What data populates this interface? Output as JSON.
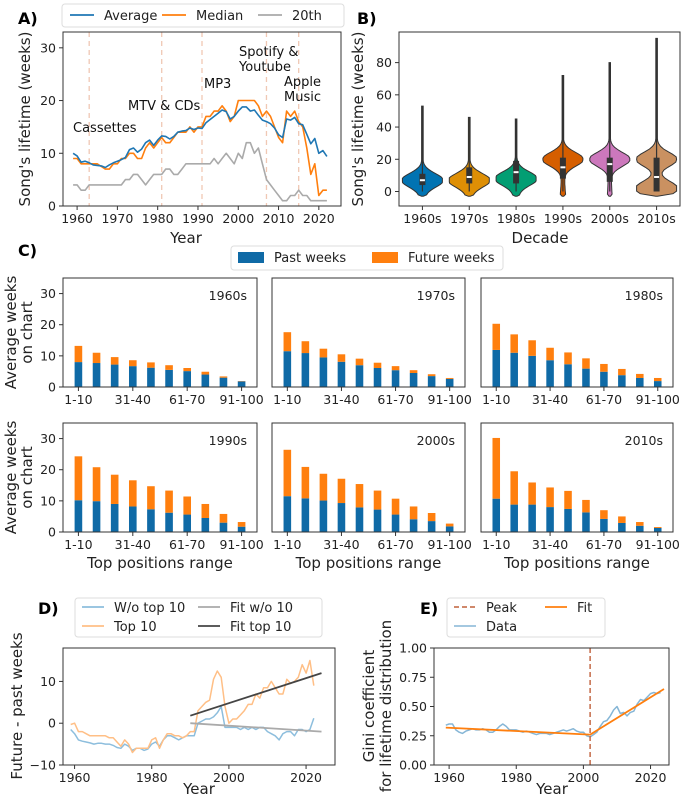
{
  "figure": {
    "panel_labels": {
      "a": "A)",
      "b": "B)",
      "c": "C)",
      "d": "D)",
      "e": "E)"
    }
  },
  "chart_data": [
    {
      "id": "A",
      "type": "line",
      "xlabel": "Year",
      "ylabel": "Song's lifetime (weeks)",
      "xlim": [
        1956.5,
        2025.5
      ],
      "ylim": [
        0,
        33
      ],
      "xticks": [
        1960,
        1970,
        1980,
        1990,
        2000,
        2010,
        2020
      ],
      "xticklabels": [
        "1960",
        "1970",
        "1980",
        "1990",
        "2000",
        "2010",
        "2020"
      ],
      "yticks": [
        0,
        10,
        20,
        30
      ],
      "yticklabels": [
        "0",
        "10",
        "20",
        "30"
      ],
      "x": {
        "start": 1959,
        "end": 2022,
        "step": 1
      },
      "legend_placement": "top",
      "series": [
        {
          "name": "Average",
          "color": "#1f77b4",
          "values": [
            10,
            9.5,
            8.3,
            8.5,
            8.2,
            7.8,
            7.7,
            7.6,
            7.3,
            7.8,
            8.2,
            8.5,
            8.8,
            9.2,
            10.7,
            11,
            10.2,
            10.8,
            12,
            12.5,
            11.5,
            12.5,
            13.3,
            13.2,
            12.7,
            13.2,
            14,
            14.2,
            14.3,
            14.8,
            14.5,
            14.8,
            14.7,
            15.8,
            16.4,
            17,
            17.6,
            18.2,
            17.9,
            16.5,
            17,
            18,
            18.8,
            18.8,
            18,
            18.2,
            17.2,
            16.3,
            16,
            15.6,
            14.8,
            13.5,
            13,
            16.5,
            16.3,
            16.8,
            15.6,
            15.4,
            13.6,
            11.8,
            12.8,
            10,
            10.5,
            9.4
          ]
        },
        {
          "name": "Median",
          "color": "#ff7f0e",
          "values": [
            9,
            9,
            8,
            8,
            8,
            8,
            8,
            7.5,
            7,
            7,
            8,
            8,
            9,
            9,
            10,
            10,
            9,
            9,
            11,
            12,
            11,
            12,
            13,
            12,
            12,
            13,
            14,
            14,
            14,
            15,
            14,
            15,
            15,
            17,
            17,
            18,
            18,
            19,
            18,
            16,
            17,
            20,
            20,
            20,
            20,
            20,
            19,
            17,
            18,
            17,
            15,
            13,
            12,
            18,
            17,
            18,
            16,
            15,
            11,
            6,
            8,
            2,
            3,
            3
          ]
        },
        {
          "name": "20th",
          "color": "#aaaaaa",
          "values": [
            4,
            4,
            3,
            3,
            4,
            4,
            4,
            4,
            4,
            4,
            4,
            4,
            4,
            5,
            5,
            6,
            6,
            5,
            4,
            5,
            6,
            6,
            6,
            7,
            7,
            6,
            6,
            7,
            8,
            8,
            8,
            8,
            8,
            8,
            8,
            9,
            8,
            9,
            10,
            9,
            8,
            10,
            9,
            12,
            12,
            10,
            11,
            8,
            5,
            4,
            3,
            2,
            1,
            1,
            2,
            2,
            3,
            2,
            2,
            1,
            1,
            1,
            1,
            1
          ]
        }
      ],
      "vlines_color": "#f0c8b4",
      "annotations": [
        {
          "year": 1963,
          "lines": [
            "Cassettes"
          ]
        },
        {
          "year": 1981,
          "lines": [
            "MTV & CDs"
          ]
        },
        {
          "year": 1991,
          "lines": [
            "MP3"
          ]
        },
        {
          "year": 2007,
          "lines": [
            "Spotify &",
            "Youtube"
          ]
        },
        {
          "year": 2015,
          "lines": [
            "Apple",
            "Music"
          ]
        }
      ]
    },
    {
      "id": "B",
      "type": "violin",
      "xlabel": "Decade",
      "ylabel": "Song's lifetime (weeks)",
      "ylim": [
        -9,
        99
      ],
      "yticks": [
        0,
        20,
        40,
        60,
        80
      ],
      "yticklabels": [
        "0",
        "20",
        "40",
        "60",
        "80"
      ],
      "categories": [
        "1960s",
        "1970s",
        "1980s",
        "1990s",
        "2000s",
        "2010s"
      ],
      "colors": [
        "#0173b2",
        "#de8f05",
        "#029e73",
        "#d55e00",
        "#cc78bc",
        "#ca9161"
      ],
      "median": [
        7,
        9,
        12,
        15,
        17,
        9
      ],
      "q1": [
        4,
        5,
        5,
        8,
        6,
        0
      ],
      "q3": [
        11,
        15,
        19,
        21,
        21,
        21
      ],
      "min": [
        0,
        0,
        0,
        0,
        0,
        0
      ],
      "max": [
        53,
        46,
        45,
        72,
        80,
        95
      ],
      "modes": [
        [
          7
        ],
        [
          7
        ],
        [
          8
        ],
        [
          20
        ],
        [
          20
        ],
        [
          2,
          20
        ]
      ]
    },
    {
      "id": "C",
      "type": "bar",
      "stacked": true,
      "xlabel": "Top positions range",
      "ylabel": [
        "Average weeks",
        "on chart"
      ],
      "ylim": [
        0,
        35
      ],
      "yticks": [
        0,
        10,
        20,
        30
      ],
      "yticklabels": [
        "0",
        "10",
        "20",
        "30"
      ],
      "categories": [
        "1-10",
        "11-20",
        "21-30",
        "31-40",
        "41-50",
        "51-60",
        "61-70",
        "71-80",
        "81-90",
        "91-100"
      ],
      "xticklabels_shown": [
        "1-10",
        "31-40",
        "61-70",
        "91-100"
      ],
      "legend_placement": "top-center",
      "series_names": {
        "past": "Past weeks",
        "future": "Future weeks"
      },
      "series_colors": {
        "past": "#0f6aa6",
        "future": "#ff7f0e"
      },
      "subplots": [
        {
          "decade": "1960s",
          "past": [
            8,
            7.7,
            7.2,
            6.7,
            6.2,
            5.5,
            5.1,
            4,
            3,
            1.8
          ],
          "future": [
            5.2,
            3.3,
            2.4,
            1.9,
            1.7,
            1.5,
            1.0,
            0.9,
            0.4,
            0.1
          ]
        },
        {
          "decade": "1970s",
          "past": [
            11.5,
            10.9,
            9.5,
            8.1,
            7.0,
            6.1,
            5.4,
            4.5,
            3.5,
            2.6
          ],
          "future": [
            6.1,
            3.8,
            2.8,
            2.4,
            2.1,
            1.7,
            1.3,
            0.9,
            0.6,
            0.3
          ]
        },
        {
          "decade": "1980s",
          "past": [
            11.9,
            11.0,
            10.0,
            8.6,
            7.3,
            5.9,
            4.9,
            3.8,
            2.9,
            1.9
          ],
          "future": [
            8.4,
            5.9,
            5.0,
            4.0,
            3.8,
            3.3,
            2.5,
            2.0,
            1.3,
            1.0
          ]
        },
        {
          "decade": "1990s",
          "past": [
            10.2,
            9.9,
            9,
            8.2,
            7.3,
            6.2,
            5.6,
            4.5,
            3,
            1.7
          ],
          "future": [
            14.1,
            10.9,
            9.4,
            8.4,
            7.4,
            7.1,
            5.8,
            4.5,
            2.8,
            1.5
          ]
        },
        {
          "decade": "2000s",
          "past": [
            11.5,
            10.8,
            10.1,
            9.3,
            7.9,
            7.2,
            5.6,
            4.1,
            3.5,
            1.8
          ],
          "future": [
            14.9,
            10.1,
            8.6,
            7.8,
            7.5,
            6.1,
            5.1,
            4.1,
            2.6,
            0.9
          ]
        },
        {
          "decade": "2010s",
          "past": [
            10.7,
            8.8,
            8.8,
            8.0,
            7.4,
            6.3,
            4.2,
            2.9,
            2.0,
            1.3
          ],
          "future": [
            19.5,
            10.7,
            7.1,
            6.3,
            5.8,
            4.0,
            2.8,
            2.1,
            1.2,
            0.3
          ]
        }
      ]
    },
    {
      "id": "D",
      "type": "line",
      "xlabel": "Year",
      "ylabel": "Future - past weeks",
      "xlim": [
        1957,
        2027.5
      ],
      "ylim": [
        -10,
        18
      ],
      "xticks": [
        1960,
        1980,
        2000,
        2020
      ],
      "xticklabels": [
        "1960",
        "1980",
        "2000",
        "2020"
      ],
      "yticks": [
        -10,
        0,
        10
      ],
      "yticklabels": [
        "−10",
        "0",
        "10"
      ],
      "x": {
        "start": 1959,
        "end": 2022,
        "step": 1
      },
      "legend_placement": "above",
      "series": [
        {
          "name": "W/o top 10",
          "color": "#8dbedd",
          "values": [
            -1.5,
            -2.5,
            -4,
            -4.3,
            -4.5,
            -4.7,
            -5,
            -4.8,
            -4.8,
            -5,
            -5,
            -5.3,
            -5.8,
            -6,
            -5,
            -5.5,
            -6.5,
            -6,
            -6,
            -6.5,
            -6.2,
            -5,
            -4.5,
            -5.5,
            -4,
            -3,
            -3,
            -3.5,
            -4,
            -3.5,
            -3,
            -3,
            -3,
            0,
            0.5,
            1,
            1,
            1.5,
            2.5,
            4,
            -1,
            -1,
            -1,
            -1,
            -1.5,
            -1,
            -1.5,
            -1,
            -1.5,
            -1,
            -1,
            -2,
            -2.5,
            -3,
            -4,
            -2.5,
            -2,
            -2,
            -3,
            -1.5,
            -1.5,
            -2,
            -1.5,
            1.2
          ]
        },
        {
          "name": "Top 10",
          "color": "#ffbf86",
          "values": [
            -0.3,
            0,
            -2,
            -2,
            -2.5,
            -3,
            -3,
            -3,
            -3,
            -3,
            -3.5,
            -3.5,
            -4.5,
            -5.5,
            -4,
            -5,
            -7,
            -6,
            -6,
            -6,
            -6,
            -4,
            -3.5,
            -6,
            -4,
            -2.5,
            -2.5,
            -3,
            -3,
            -3.5,
            -3,
            -2,
            -2,
            3,
            4,
            5,
            5.5,
            10.5,
            12.5,
            11,
            4,
            0,
            1,
            1,
            2,
            3,
            4.5,
            4.5,
            7,
            6,
            8.5,
            8.5,
            10,
            8.5,
            7,
            7,
            10.5,
            9.5,
            10,
            11,
            14,
            12,
            15,
            9
          ]
        }
      ],
      "fits": [
        {
          "name": "Fit w/o 10",
          "color": "#aaaaaa",
          "x": [
            1990,
            2024
          ],
          "y": [
            0,
            -2
          ]
        },
        {
          "name": "Fit top 10",
          "color": "#444444",
          "x": [
            1990,
            2024
          ],
          "y": [
            1.8,
            12
          ]
        }
      ]
    },
    {
      "id": "E",
      "type": "line",
      "xlabel": "Year",
      "ylabel": [
        "Gini coefficient",
        "for lifetime distribution"
      ],
      "xlim": [
        1955.5,
        2025.5
      ],
      "ylim": [
        0,
        1
      ],
      "xticks": [
        1960,
        1980,
        2000,
        2020
      ],
      "xticklabels": [
        "1960",
        "1980",
        "2000",
        "2020"
      ],
      "yticks": [
        0,
        0.25,
        0.5,
        0.75,
        1
      ],
      "yticklabels": [
        "0.00",
        "0.25",
        "0.50",
        "0.75",
        "1.00"
      ],
      "x": {
        "start": 1959,
        "end": 2023,
        "step": 1
      },
      "legend_placement": "above",
      "series": [
        {
          "name": "Data",
          "color": "#86b6d6",
          "values": [
            0.34,
            0.35,
            0.35,
            0.3,
            0.28,
            0.27,
            0.29,
            0.3,
            0.31,
            0.3,
            0.3,
            0.31,
            0.3,
            0.28,
            0.28,
            0.3,
            0.33,
            0.35,
            0.33,
            0.3,
            0.3,
            0.3,
            0.29,
            0.28,
            0.29,
            0.28,
            0.27,
            0.26,
            0.27,
            0.27,
            0.27,
            0.26,
            0.27,
            0.28,
            0.29,
            0.3,
            0.29,
            0.3,
            0.31,
            0.29,
            0.28,
            0.28,
            0.25,
            0.24,
            0.26,
            0.28,
            0.33,
            0.37,
            0.38,
            0.42,
            0.47,
            0.5,
            0.44,
            0.45,
            0.42,
            0.45,
            0.46,
            0.52,
            0.56,
            0.55,
            0.58,
            0.61,
            0.62,
            0.61,
            0.62
          ]
        }
      ],
      "peak": {
        "name": "Peak",
        "year": 2002,
        "color": "#c0603a"
      },
      "fit": {
        "name": "Fit",
        "color": "#ff7f0e",
        "x": [
          1959,
          2002,
          2024
        ],
        "y": [
          0.32,
          0.26,
          0.65
        ]
      }
    }
  ]
}
